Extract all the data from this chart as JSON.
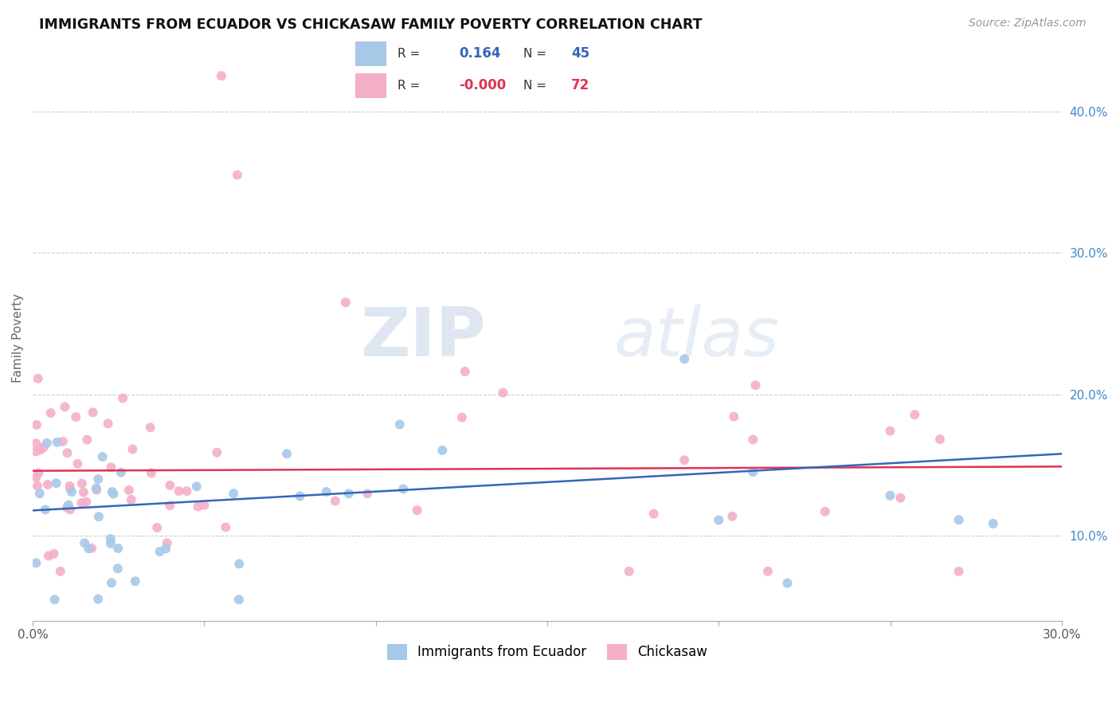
{
  "title": "IMMIGRANTS FROM ECUADOR VS CHICKASAW FAMILY POVERTY CORRELATION CHART",
  "source": "Source: ZipAtlas.com",
  "ylabel": "Family Poverty",
  "xlim": [
    0.0,
    0.3
  ],
  "ylim": [
    0.04,
    0.44
  ],
  "blue_color": "#a8c8e8",
  "pink_color": "#f4afc8",
  "blue_line_color": "#3366bb",
  "pink_line_color": "#dd3355",
  "legend_label_blue": "Immigrants from Ecuador",
  "legend_label_pink": "Chickasaw",
  "blue_r": "0.164",
  "blue_n": "45",
  "pink_r": "-0.000",
  "pink_n": "72",
  "blue_line_start_y": 0.118,
  "blue_line_end_y": 0.158,
  "pink_line_start_y": 0.145,
  "pink_line_end_y": 0.148,
  "watermark_zip": "ZIP",
  "watermark_atlas": "atlas",
  "right_tick_color": "#4488cc",
  "grid_color": "#cccccc"
}
